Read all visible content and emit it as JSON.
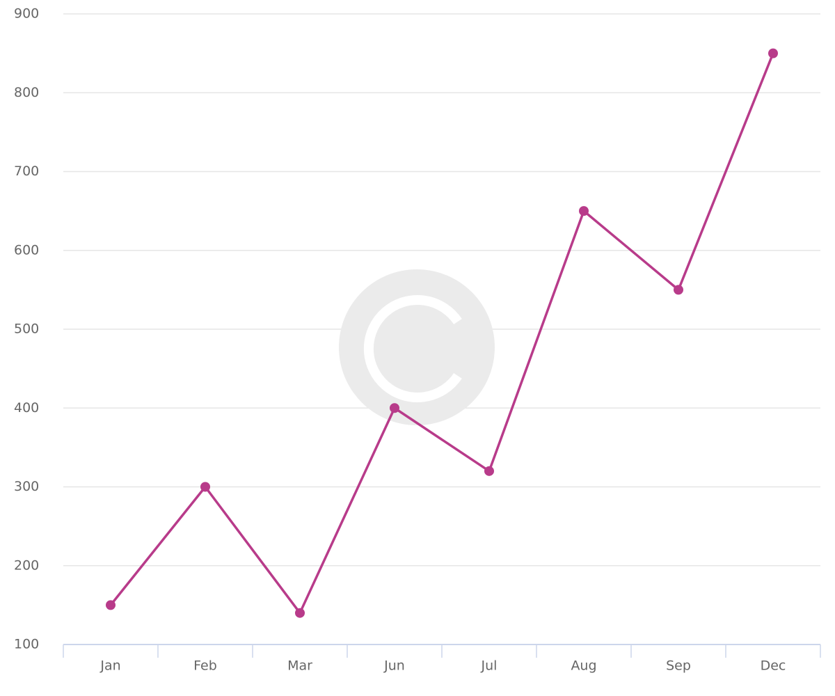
{
  "chart_data": {
    "type": "line",
    "categories": [
      "Jan",
      "Feb",
      "Mar",
      "Jun",
      "Jul",
      "Aug",
      "Sep",
      "Dec"
    ],
    "series": [
      {
        "color": "#b83b8a",
        "values": [
          150,
          300,
          140,
          400,
          320,
          650,
          550,
          850
        ]
      }
    ],
    "ylim": [
      100,
      900
    ],
    "yticks": [
      100,
      200,
      300,
      400,
      500,
      600,
      700,
      800,
      900
    ],
    "grid": true
  }
}
